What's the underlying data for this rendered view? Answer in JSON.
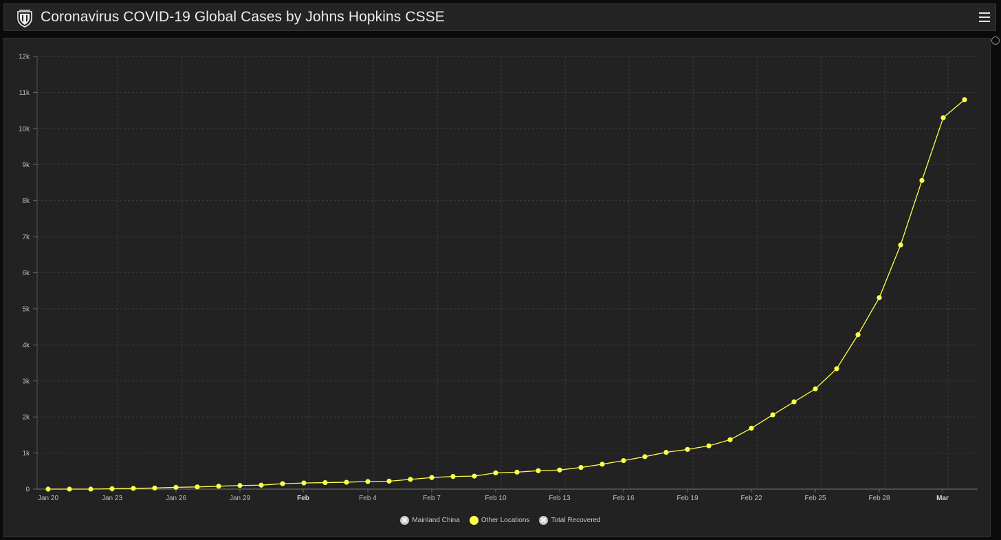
{
  "header": {
    "title": "Coronavirus COVID-19 Global Cases by Johns Hopkins CSSE",
    "logo_icon": "university-seal-icon",
    "menu_icon": "hamburger-menu-icon"
  },
  "colors": {
    "series": "#ffff4d",
    "background": "#222222",
    "grid": "#3c3c3c",
    "text": "#bdbdbd"
  },
  "chart_data": {
    "type": "line",
    "title": "",
    "xlabel": "",
    "ylabel": "",
    "ylim": [
      0,
      12000
    ],
    "yticks": [
      0,
      1000,
      2000,
      3000,
      4000,
      5000,
      6000,
      7000,
      8000,
      9000,
      10000,
      11000,
      12000
    ],
    "ytick_labels": [
      "0",
      "1k",
      "2k",
      "3k",
      "4k",
      "5k",
      "6k",
      "7k",
      "8k",
      "9k",
      "10k",
      "11k",
      "12k"
    ],
    "xtick_labels": [
      {
        "day": 0,
        "label": "Jan 20",
        "bold": false
      },
      {
        "day": 3,
        "label": "Jan 23",
        "bold": false
      },
      {
        "day": 6,
        "label": "Jan 26",
        "bold": false
      },
      {
        "day": 9,
        "label": "Jan 29",
        "bold": false
      },
      {
        "day": 12,
        "label": "Feb",
        "bold": true
      },
      {
        "day": 15,
        "label": "Feb 4",
        "bold": false
      },
      {
        "day": 18,
        "label": "Feb 7",
        "bold": false
      },
      {
        "day": 21,
        "label": "Feb 10",
        "bold": false
      },
      {
        "day": 24,
        "label": "Feb 13",
        "bold": false
      },
      {
        "day": 27,
        "label": "Feb 16",
        "bold": false
      },
      {
        "day": 30,
        "label": "Feb 19",
        "bold": false
      },
      {
        "day": 33,
        "label": "Feb 22",
        "bold": false
      },
      {
        "day": 36,
        "label": "Feb 25",
        "bold": false
      },
      {
        "day": 39,
        "label": "Feb 28",
        "bold": false
      },
      {
        "day": 42,
        "label": "Mar",
        "bold": true
      }
    ],
    "grid": true,
    "legend_position": "bottom-center",
    "series": [
      {
        "name": "Other Locations",
        "color": "#ffff4d",
        "values": [
          0,
          0,
          0,
          10,
          20,
          30,
          50,
          60,
          80,
          100,
          110,
          150,
          170,
          180,
          190,
          210,
          220,
          270,
          320,
          350,
          360,
          450,
          470,
          510,
          530,
          600,
          690,
          790,
          900,
          1020,
          1100,
          1200,
          1370,
          1690,
          2060,
          2420,
          2780,
          3340,
          4280,
          5310,
          6770,
          8560,
          10300,
          10800
        ]
      }
    ]
  },
  "legend": [
    {
      "label": "Mainland China",
      "state": "off"
    },
    {
      "label": "Other Locations",
      "state": "on"
    },
    {
      "label": "Total Recovered",
      "state": "off"
    }
  ]
}
